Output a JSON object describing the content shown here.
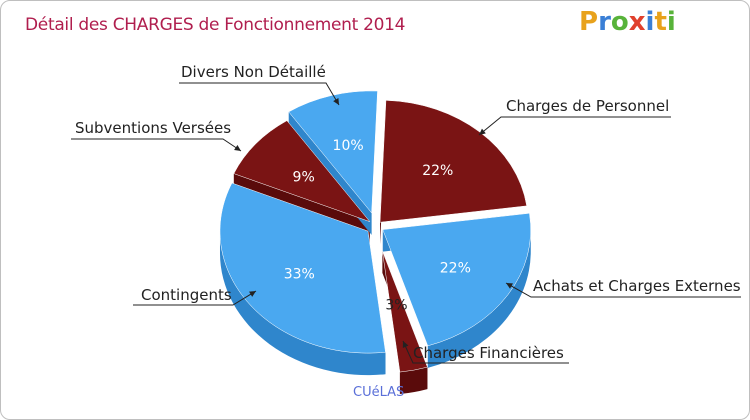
{
  "title": "Détail des CHARGES de Fonctionnement 2014",
  "logo": [
    "P",
    "r",
    "o",
    "x",
    "i",
    "t",
    "i"
  ],
  "commune": "CUéLAS",
  "colors": {
    "red": "#7a1414",
    "redSide": "#5a0b0b",
    "blue": "#4aa8f0",
    "blueSide": "#2f86cc",
    "title": "#b01e4e"
  },
  "chart_data": {
    "type": "pie",
    "title": "Détail des CHARGES de Fonctionnement 2014",
    "slices": [
      {
        "label": "Charges de Personnel",
        "value": 22,
        "pct_label": "22%",
        "color": "red"
      },
      {
        "label": "Achats et Charges Externes",
        "value": 22,
        "pct_label": "22%",
        "color": "blue"
      },
      {
        "label": "Charges Financières",
        "value": 3,
        "pct_label": "3%",
        "color": "red"
      },
      {
        "label": "Contingents",
        "value": 33,
        "pct_label": "33%",
        "color": "blue"
      },
      {
        "label": "Subventions Versées",
        "value": 9,
        "pct_label": "9%",
        "color": "red"
      },
      {
        "label": "Divers Non Détaillé",
        "value": 10,
        "pct_label": "10%",
        "color": "blue"
      }
    ]
  }
}
